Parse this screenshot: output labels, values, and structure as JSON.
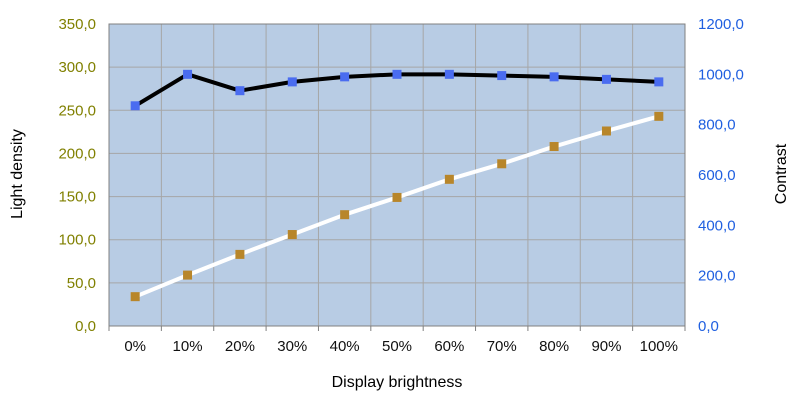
{
  "chart_data": {
    "type": "line",
    "title": "",
    "xlabel": "Display brightness",
    "ylabel_left": "Light density",
    "ylabel_right": "Contrast",
    "categories": [
      "0%",
      "10%",
      "20%",
      "30%",
      "40%",
      "50%",
      "60%",
      "70%",
      "80%",
      "90%",
      "100%"
    ],
    "y_left": {
      "range": [
        0,
        350
      ],
      "ticks": [
        0,
        50,
        100,
        150,
        200,
        250,
        300,
        350
      ],
      "tick_labels": [
        "0,0",
        "50,0",
        "100,0",
        "150,0",
        "200,0",
        "250,0",
        "300,0",
        "350,0"
      ],
      "color": "#808000"
    },
    "y_right": {
      "range": [
        0,
        1200
      ],
      "ticks": [
        0,
        200,
        400,
        600,
        800,
        1000,
        1200
      ],
      "tick_labels": [
        "0,0",
        "200,0",
        "400,0",
        "600,0",
        "800,0",
        "1000,0",
        "1200,0"
      ],
      "color": "#1f5fe0"
    },
    "series": [
      {
        "axis": "left",
        "line_color": "#ffffff",
        "marker_color": "#b8862a",
        "values": [
          34,
          59,
          83,
          106,
          129,
          149,
          170,
          188,
          208,
          226,
          243
        ]
      },
      {
        "axis": "right",
        "line_color": "#000000",
        "marker_color": "#4a6cf0",
        "values": [
          875,
          1000,
          935,
          970,
          990,
          1000,
          1000,
          995,
          990,
          980,
          970
        ]
      }
    ],
    "grid": true,
    "plot_background": "#b8cce4",
    "grid_color": "#a6a6a6",
    "legend": "none"
  }
}
